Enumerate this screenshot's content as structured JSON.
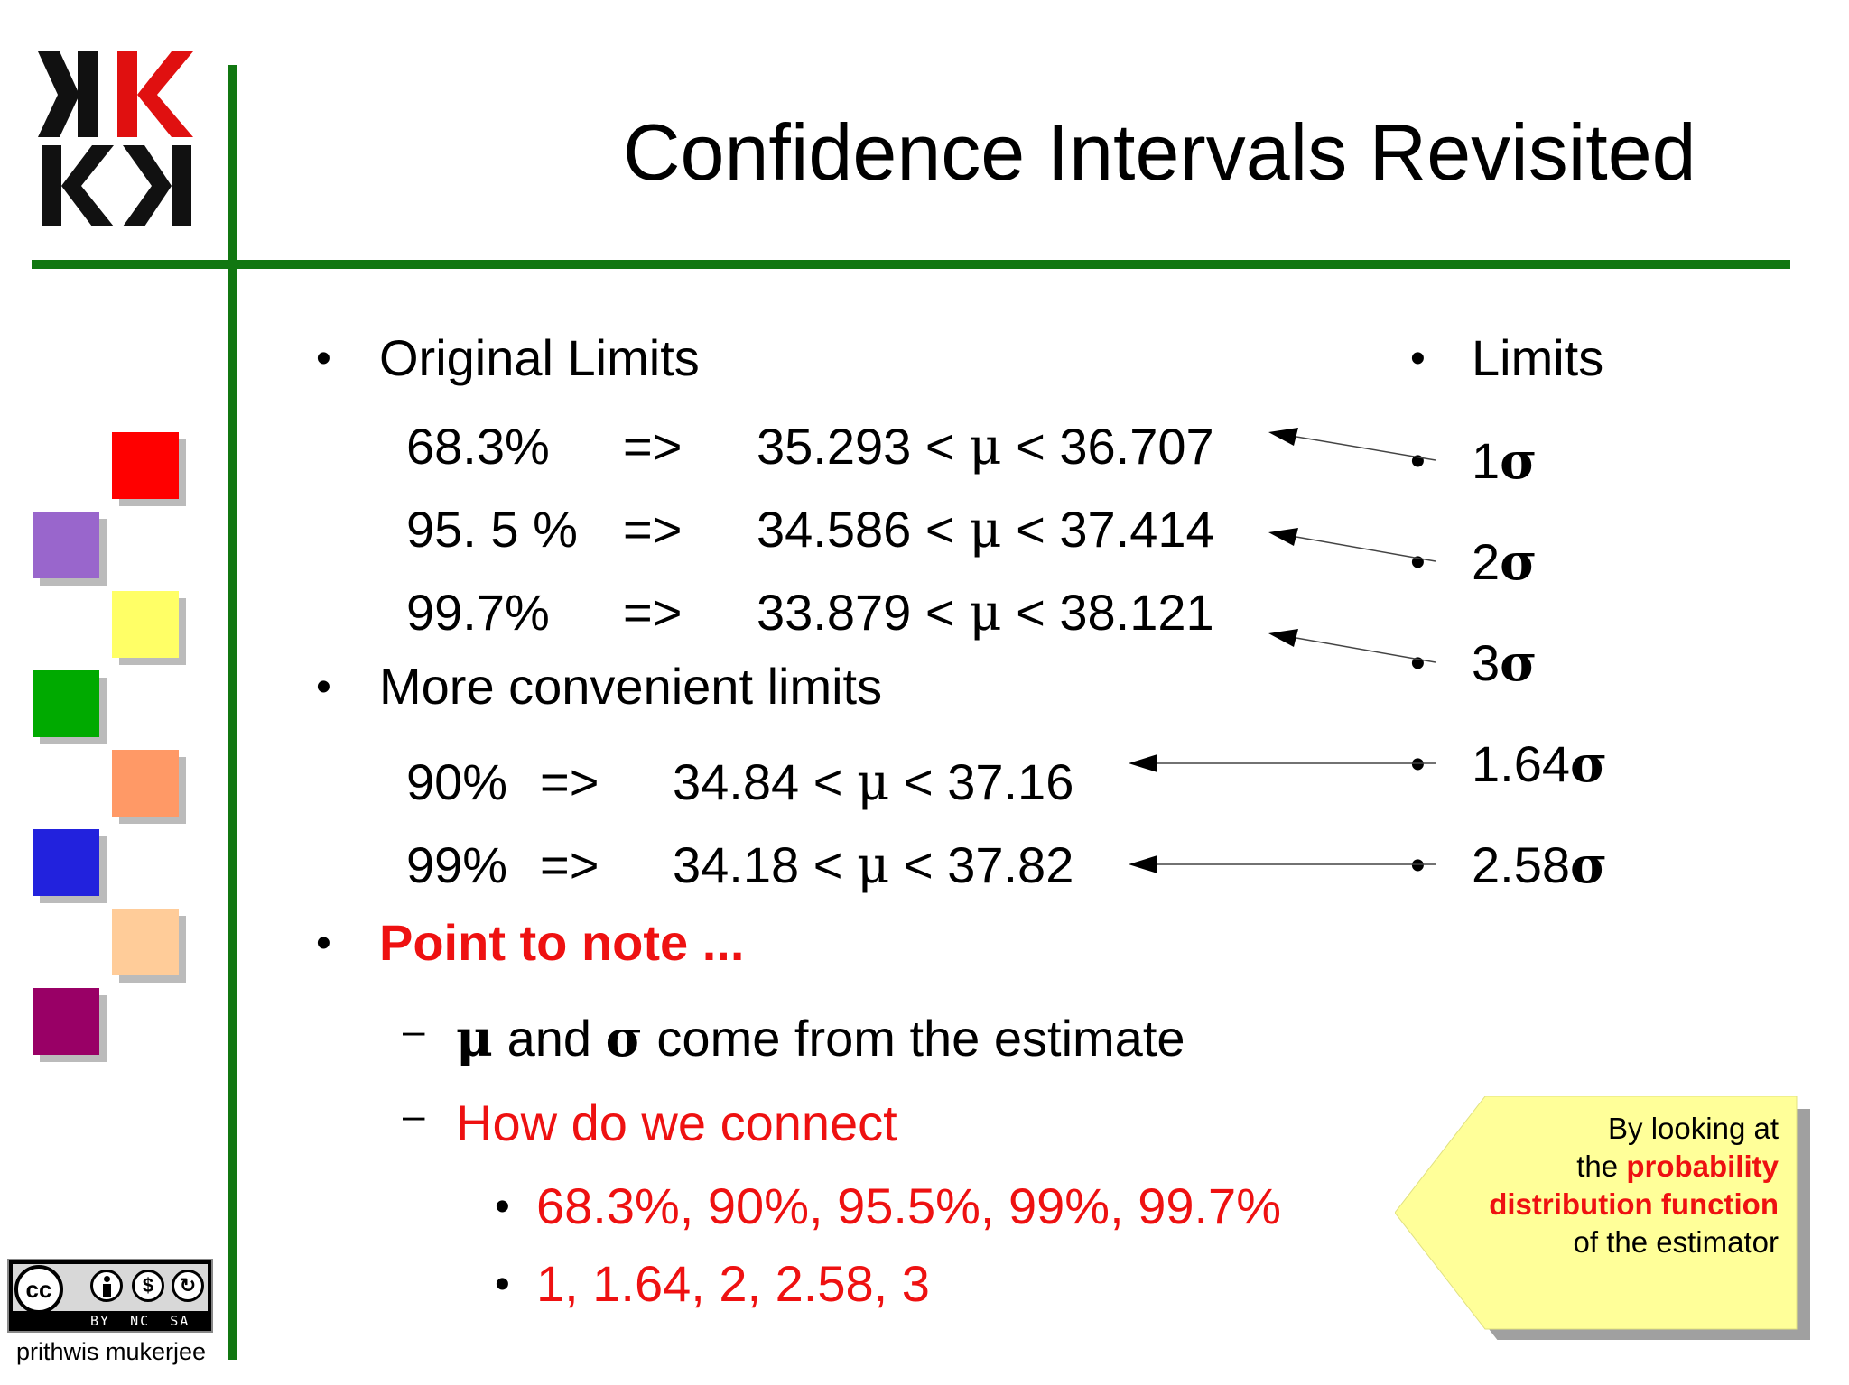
{
  "title": "Confidence Intervals Revisited",
  "logo": {
    "letters": "KKKK"
  },
  "colors": {
    "accent_line": "#117711",
    "highlight": "#ee1111"
  },
  "left_bullets": {
    "original_limits": "Original Limits",
    "original_rows": [
      {
        "pct": "68.3%",
        "arrow": "=>",
        "low": "35.293",
        "high": "36.707"
      },
      {
        "pct": "95. 5 %",
        "arrow": "=>",
        "low": "34.586",
        "high": "37.414"
      },
      {
        "pct": "99.7%",
        "arrow": "=>",
        "low": "33.879",
        "high": "38.121"
      }
    ],
    "more_convenient": "More convenient limits",
    "convenient_rows": [
      {
        "pct": "90%",
        "arrow": "=>",
        "low": "34.84",
        "high": "37.16"
      },
      {
        "pct": "99%",
        "arrow": "=>",
        "low": "34.18",
        "high": "37.82"
      }
    ],
    "point_to_note": "Point to note ...",
    "sub1_and": "and",
    "sub1_rest": "come from the estimate",
    "sub2": "How do we connect",
    "sub_sub": [
      "68.3%, 90%, 95.5%, 99%, 99.7%",
      "1, 1.64, 2, 2.58, 3"
    ]
  },
  "symbols": {
    "lt": "<",
    "mu": "μ",
    "sigma": "σ",
    "bullet": "•",
    "dash": "–"
  },
  "right_bullets": {
    "header": "Limits",
    "items": [
      "1",
      "2",
      "3",
      "1.64",
      "2.58"
    ]
  },
  "callout": {
    "line1": "By looking at",
    "line2_a": "the",
    "line2_b": "probability",
    "line3": "distribution function",
    "line4": "of the estimator"
  },
  "license": {
    "cc": "cc",
    "by": "BY",
    "nc": "NC",
    "sa": "SA"
  },
  "footer": "prithwis mukerjee"
}
